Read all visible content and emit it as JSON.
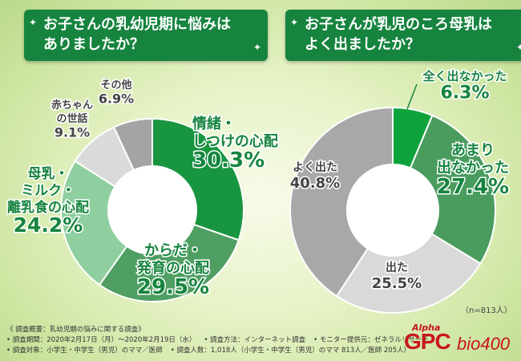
{
  "questions": {
    "q1": [
      "お子さんの乳幼児期に悩みは",
      "ありましたか？"
    ],
    "q2": [
      "お子さんが乳児のころ母乳は",
      "よく出ましたか？"
    ]
  },
  "n_label": "（n=813人）",
  "chart_data": [
    {
      "type": "pie",
      "title": "お子さんの乳幼児期に悩みはありましたか？",
      "categories": [
        "情緒・しつけの心配",
        "からだ・発育の心配",
        "母乳・ミルク・離乳食の心配",
        "赤ちゃんの世話",
        "その他"
      ],
      "values": [
        30.3,
        29.5,
        24.2,
        9.1,
        6.9
      ],
      "unit": "%",
      "colors": [
        "#18953f",
        "#4f9e62",
        "#8fcf9f",
        "#dadada",
        "#a4a4a4"
      ],
      "labels": [
        {
          "lines": [
            "情緒・",
            "しつけの心配"
          ],
          "value": "30.3%",
          "text_color": "#16843f"
        },
        {
          "lines": [
            "からだ・",
            "発育の心配"
          ],
          "value": "29.5%",
          "text_color": "#16843f"
        },
        {
          "lines": [
            "母乳・",
            "ミルク・",
            "離乳食の心配"
          ],
          "value": "24.2%",
          "text_color": "#16843f"
        },
        {
          "lines": [
            "赤ちゃん",
            "の世話"
          ],
          "value": "9.1%",
          "text_color": "#444444"
        },
        {
          "lines": [
            "その他"
          ],
          "value": "6.9%",
          "text_color": "#444444"
        }
      ]
    },
    {
      "type": "pie",
      "title": "お子さんが乳児のころ母乳はよく出ましたか？",
      "categories": [
        "全く出なかった",
        "あまり出なかった",
        "出た",
        "よく出た"
      ],
      "values": [
        6.3,
        27.4,
        25.5,
        40.8
      ],
      "unit": "%",
      "colors": [
        "#0ea33a",
        "#4a9c5e",
        "#d9d9d9",
        "#a8a8a8"
      ],
      "labels": [
        {
          "lines": [
            "全く出なかった"
          ],
          "value": "6.3%",
          "text_color": "#16843f"
        },
        {
          "lines": [
            "あまり",
            "出なかった"
          ],
          "value": "27.4%",
          "text_color": "#16843f"
        },
        {
          "lines": [
            "出た"
          ],
          "value": "25.5%",
          "text_color": "#444444"
        },
        {
          "lines": [
            "よく出た"
          ],
          "value": "40.8%",
          "text_color": "#444444"
        }
      ]
    }
  ],
  "footer": {
    "line1": "《 調査概要：乳幼児期の悩みに関する調査》",
    "line2_items": [
      "• 調査期間：2020年2月17日（月）～2020年2月19日（水）",
      "• 調査方法：インターネット調査",
      "• モニター提供元：ゼネラルリサーチ"
    ],
    "line3_items": [
      "• 調査対象：小学生・中学生（男児）のママ／医師",
      "• 調査人数：1,018人（小学生・中学生（男児）のママ 813人／医師 205人）"
    ]
  },
  "logo": {
    "alpha": "Alpha",
    "gpc": "GPC",
    "bio": "bio400"
  }
}
